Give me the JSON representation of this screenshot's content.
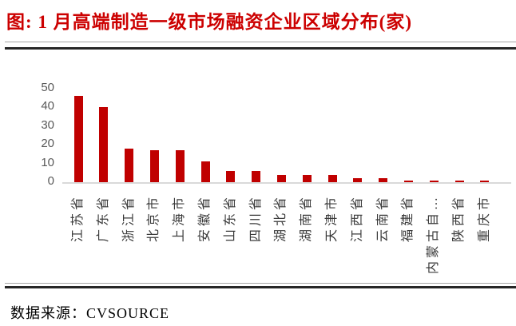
{
  "title": "图: 1 月高端制造一级市场融资企业区域分布(家)",
  "source_label": "数据来源：CVSOURCE",
  "colors": {
    "title": "#cc0000",
    "bar": "#c00000",
    "y_tick_label": "#595959",
    "x_tick_label": "#3a3a3a",
    "axis_line": "#d9d9d9",
    "rule_thin": "#a6a6a6",
    "rule_thick": "#262626"
  },
  "chart_data": {
    "type": "bar",
    "title": "1 月高端制造一级市场融资企业区域分布(家)",
    "categories": [
      "江苏省",
      "广东省",
      "浙江省",
      "北京市",
      "上海市",
      "安徽省",
      "山东省",
      "四川省",
      "湖北省",
      "湖南省",
      "天津市",
      "江西省",
      "云南省",
      "福建省",
      "内蒙古自…",
      "陕西省",
      "重庆市"
    ],
    "values": [
      46,
      40,
      18,
      17,
      17,
      11,
      6,
      6,
      4,
      4,
      4,
      2,
      2,
      1,
      1,
      1,
      1
    ],
    "xlabel": "",
    "ylabel": "",
    "ylim": [
      0,
      50
    ],
    "yticks": [
      0,
      10,
      20,
      30,
      40,
      50
    ],
    "grid": false,
    "legend": false,
    "bar_color": "#c00000"
  }
}
